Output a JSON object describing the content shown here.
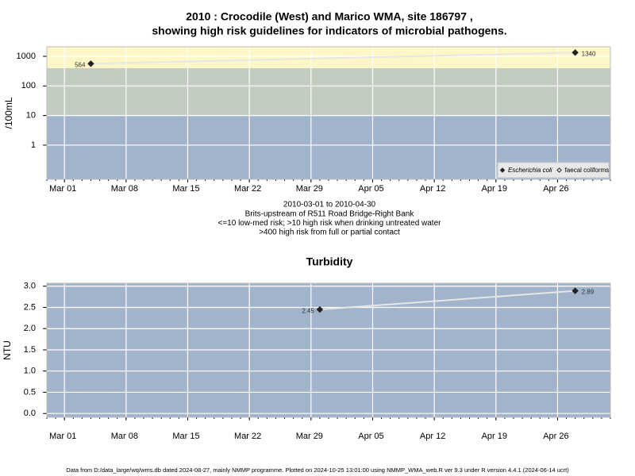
{
  "chart_data": [
    {
      "type": "scatter",
      "title": [
        "2010 : Crocodile (West) and Marico WMA, site 186797 ,",
        "showing high risk guidelines for indicators of microbial pathogens."
      ],
      "y_label": "/100mL",
      "notes": [
        "2010-03-01 to 2010-04-30",
        "Brits-upstream of R511 Road Bridge-Right Bank",
        "<=10 low-med risk; >10 high risk when drinking untreated water",
        ">400 high risk from full or partial contact"
      ],
      "x": [
        "2010-03-04",
        "2010-04-28"
      ],
      "series": [
        {
          "name": "Escherichia coli",
          "color": "#222222",
          "marker": "filled-diamond",
          "values": [
            564,
            1340
          ]
        },
        {
          "name": "faecal coliforms",
          "color": "#222222",
          "marker": "open-diamond",
          "values": [
            null,
            null
          ]
        }
      ],
      "line_color": "#e6e6e6",
      "log_y": true,
      "xlim": [
        "2010-02-27",
        "2010-05-02"
      ],
      "xticks": [
        {
          "value": "2010-03-01",
          "label": "Mar 01"
        },
        {
          "value": "2010-03-08",
          "label": "Mar 08"
        },
        {
          "value": "2010-03-15",
          "label": "Mar 15"
        },
        {
          "value": "2010-03-22",
          "label": "Mar 22"
        },
        {
          "value": "2010-03-29",
          "label": "Mar 29"
        },
        {
          "value": "2010-04-05",
          "label": "Apr 05"
        },
        {
          "value": "2010-04-12",
          "label": "Apr 12"
        },
        {
          "value": "2010-04-19",
          "label": "Apr 19"
        },
        {
          "value": "2010-04-26",
          "label": "Apr 26"
        }
      ],
      "ylim": [
        0.07,
        2100
      ],
      "yticks": [
        1,
        10,
        100,
        1000
      ],
      "bands": [
        {
          "to": 10,
          "color": "#a2b4cc"
        },
        {
          "from": 10,
          "to": 400,
          "color": "#c3ccc1"
        },
        {
          "from": 400,
          "color": "#fdf6c6"
        }
      ],
      "grid": true,
      "legend": "bottom-right"
    },
    {
      "type": "scatter",
      "title": [
        "Turbidity"
      ],
      "y_label": "NTU",
      "x": [
        "2010-03-30",
        "2010-04-28"
      ],
      "series": [
        {
          "color": "#222222",
          "marker": "filled-diamond",
          "values": [
            2.45,
            2.89
          ]
        }
      ],
      "line_color": "#e6e6e6",
      "xlim": [
        "2010-02-27",
        "2010-05-02"
      ],
      "xticks": [
        {
          "value": "2010-03-01",
          "label": "Mar 01"
        },
        {
          "value": "2010-03-08",
          "label": "Mar 08"
        },
        {
          "value": "2010-03-15",
          "label": "Mar 15"
        },
        {
          "value": "2010-03-22",
          "label": "Mar 22"
        },
        {
          "value": "2010-03-29",
          "label": "Mar 29"
        },
        {
          "value": "2010-04-05",
          "label": "Apr 05"
        },
        {
          "value": "2010-04-12",
          "label": "Apr 12"
        },
        {
          "value": "2010-04-19",
          "label": "Apr 19"
        },
        {
          "value": "2010-04-26",
          "label": "Apr 26"
        }
      ],
      "ylim": [
        -0.09,
        3.07
      ],
      "yticks": [
        {
          "value": 0,
          "label": "0.0"
        },
        0.5,
        {
          "value": 1,
          "label": "1.0"
        },
        1.5,
        {
          "value": 2,
          "label": "2.0"
        },
        2.5,
        {
          "value": 3,
          "label": "3.0"
        }
      ],
      "background": "#a2b4cc",
      "grid": true
    }
  ],
  "footer": "Data from D:/data_large/wq/wms.db dated 2024-08-27, mainly NMMP programme. Plotted on 2024-10-25 13:01:00 using NMMP_WMA_web.R ver 9.3 under R version 4.4.1 (2024-06-14 ucrt)"
}
